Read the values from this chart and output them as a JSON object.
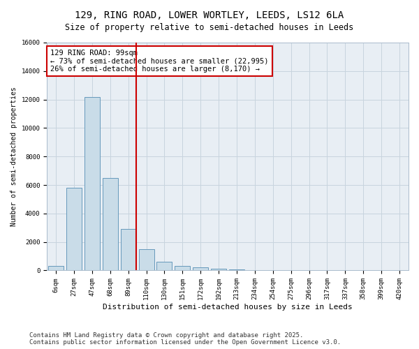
{
  "title_line1": "129, RING ROAD, LOWER WORTLEY, LEEDS, LS12 6LA",
  "title_line2": "Size of property relative to semi-detached houses in Leeds",
  "xlabel": "Distribution of semi-detached houses by size in Leeds",
  "ylabel": "Number of semi-detached properties",
  "property_label": "129 RING ROAD: 99sqm",
  "annotation_line1": "← 73% of semi-detached houses are smaller (22,995)",
  "annotation_line2": "26% of semi-detached houses are larger (8,170) →",
  "bar_categories": [
    "6sqm",
    "27sqm",
    "47sqm",
    "68sqm",
    "89sqm",
    "110sqm",
    "130sqm",
    "151sqm",
    "172sqm",
    "192sqm",
    "213sqm",
    "234sqm",
    "254sqm",
    "275sqm",
    "296sqm",
    "317sqm",
    "337sqm",
    "358sqm",
    "399sqm",
    "420sqm"
  ],
  "bar_values": [
    300,
    5800,
    12200,
    6500,
    2900,
    1500,
    600,
    300,
    200,
    100,
    50,
    30,
    20,
    10,
    5,
    5,
    5,
    5,
    5,
    5
  ],
  "bar_color": "#c9dce8",
  "bar_edge_color": "#6699bb",
  "vline_color": "#cc0000",
  "vline_x_idx": 4.5,
  "grid_color": "#c8d4de",
  "background_color": "#e8eef4",
  "ylim": [
    0,
    16000
  ],
  "yticks": [
    0,
    2000,
    4000,
    6000,
    8000,
    10000,
    12000,
    14000,
    16000
  ],
  "footer_line1": "Contains HM Land Registry data © Crown copyright and database right 2025.",
  "footer_line2": "Contains public sector information licensed under the Open Government Licence v3.0.",
  "title_fontsize": 10,
  "subtitle_fontsize": 8.5,
  "annotation_fontsize": 7.5,
  "tick_fontsize": 6.5,
  "ylabel_fontsize": 7,
  "xlabel_fontsize": 8,
  "footer_fontsize": 6.5
}
